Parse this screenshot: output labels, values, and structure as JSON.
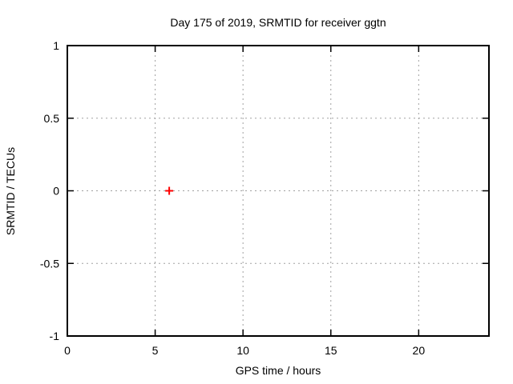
{
  "chart_data": {
    "type": "scatter",
    "title": "Day 175 of 2019, SRMTID for receiver ggtn",
    "xlabel": "GPS time / hours",
    "ylabel": "SRMTID / TECUs",
    "xlim": [
      0,
      24
    ],
    "ylim": [
      -1,
      1
    ],
    "grid": true,
    "legend": "none",
    "xticks": [
      {
        "value": 0,
        "label": "0"
      },
      {
        "value": 5,
        "label": "5"
      },
      {
        "value": 10,
        "label": "10"
      },
      {
        "value": 15,
        "label": "15"
      },
      {
        "value": 20,
        "label": "20"
      }
    ],
    "yticks": [
      {
        "value": 1,
        "label": "1"
      },
      {
        "value": 0.5,
        "label": "0.5"
      },
      {
        "value": 0,
        "label": "0"
      },
      {
        "value": -0.5,
        "label": "-0.5"
      },
      {
        "value": -1,
        "label": "-1"
      }
    ],
    "series": [
      {
        "name": "SRMTID",
        "marker": "plus",
        "color": "#ff0000",
        "points": [
          {
            "x": 5.8,
            "y": 0.0
          }
        ]
      }
    ],
    "colors": {
      "axis": "#000000",
      "grid": "#a0a0a0",
      "text": "#000000",
      "background": "#ffffff",
      "marker": "#ff0000"
    }
  }
}
